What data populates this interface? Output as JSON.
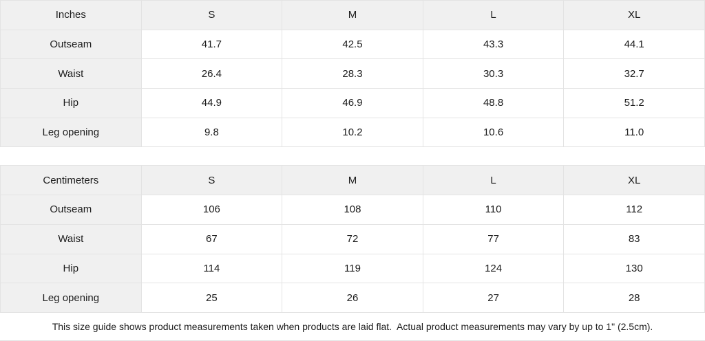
{
  "colors": {
    "header_bg": "#f0f0f0",
    "border": "#e3e3e3",
    "text": "#1c1c1c",
    "cell_bg": "#ffffff"
  },
  "inches": {
    "unit_label": "Inches",
    "sizes": [
      "S",
      "M",
      "L",
      "XL"
    ],
    "rows": [
      {
        "label": "Outseam",
        "values": [
          "41.7",
          "42.5",
          "43.3",
          "44.1"
        ]
      },
      {
        "label": "Waist",
        "values": [
          "26.4",
          "28.3",
          "30.3",
          "32.7"
        ]
      },
      {
        "label": "Hip",
        "values": [
          "44.9",
          "46.9",
          "48.8",
          "51.2"
        ]
      },
      {
        "label": "Leg opening",
        "values": [
          "9.8",
          "10.2",
          "10.6",
          "11.0"
        ]
      }
    ]
  },
  "centimeters": {
    "unit_label": "Centimeters",
    "sizes": [
      "S",
      "M",
      "L",
      "XL"
    ],
    "rows": [
      {
        "label": "Outseam",
        "values": [
          "106",
          "108",
          "110",
          "112"
        ]
      },
      {
        "label": "Waist",
        "values": [
          "67",
          "72",
          "77",
          "83"
        ]
      },
      {
        "label": "Hip",
        "values": [
          "114",
          "119",
          "124",
          "130"
        ]
      },
      {
        "label": "Leg opening",
        "values": [
          "25",
          "26",
          "27",
          "28"
        ]
      }
    ]
  },
  "footer": {
    "note": "This size guide shows product measurements taken when products are laid flat.  Actual product measurements may vary by up to 1\" (2.5cm)."
  }
}
